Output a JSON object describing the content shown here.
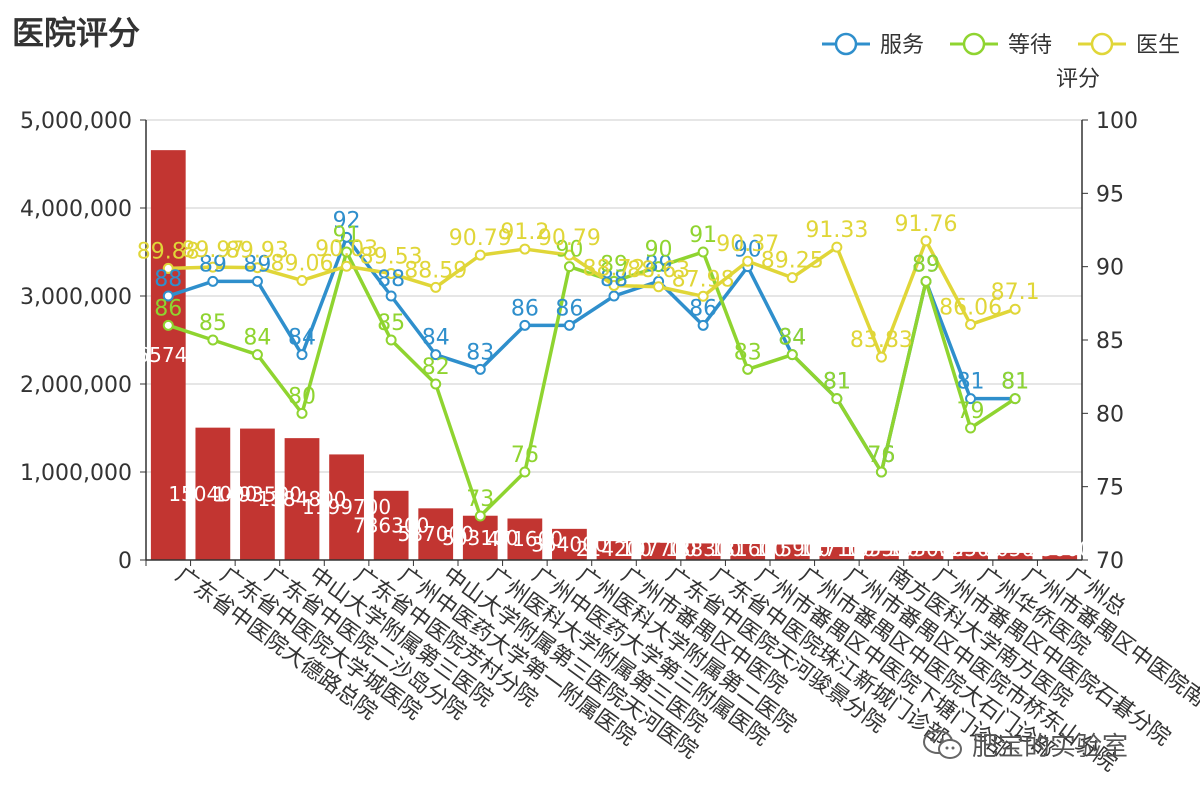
{
  "title": "医院评分",
  "watermark": "肥宝的实验室",
  "chart_data": {
    "type": "bar+line",
    "title": "医院评分",
    "y2label": "评分",
    "ylim": [
      0,
      5000000
    ],
    "y2lim": [
      70,
      100
    ],
    "y_ticks": [
      "0",
      "1,000,000",
      "2,000,000",
      "3,000,000",
      "4,000,000",
      "5,000,000"
    ],
    "y2_ticks": [
      "70",
      "75",
      "80",
      "85",
      "90",
      "95",
      "100"
    ],
    "categories": [
      "广东省中医院大德路总院",
      "广东省中医院大学城医院",
      "广东省中医院二沙岛分院",
      "中山大学附属第三医院",
      "广东省中医院芳村分院",
      "广州中医药大学第一附属医院",
      "中山大学附属第三医院天河医院",
      "广州医科大学附属第三医院",
      "广州中医药大学第三附属医院",
      "广州医科大学附属第二医院",
      "广州市番禺区中医院",
      "广东省中医院天河骏景分院",
      "广东省中医院珠江新城门诊部",
      "广州市番禺区中医院下塘门诊部",
      "广州市番禺区中医院大石门诊部",
      "广州市番禺区中医院市桥东山分院",
      "南方医科大学南方医院",
      "广州市番禺区中医院石碁分院",
      "广州华侨医院",
      "广州市番禺区中医院南村分院",
      "广州总"
    ],
    "bar_series": {
      "name": "",
      "color": "#c23531",
      "values": [
        4657400,
        1504000,
        1493500,
        1384800,
        1199700,
        786300,
        587000,
        503100,
        471600,
        354000,
        214200,
        197700,
        188300,
        181600,
        175900,
        147100,
        105500,
        103000,
        92500,
        80500,
        55000
      ]
    },
    "bar_labels": [
      "4657400",
      "1504000",
      "1493500",
      "1384800",
      "1199700",
      "786300",
      "587000",
      "503100",
      "471600",
      "354000",
      "214200",
      "197700",
      "188300",
      "181600",
      "175900",
      "147100",
      "105500",
      "103000",
      "92500",
      "80500",
      "55000"
    ],
    "series": [
      {
        "name": "服务",
        "color": "#2f8fcc",
        "values": [
          88,
          89,
          89,
          84,
          92,
          88,
          84,
          83,
          86,
          86,
          88,
          89,
          86,
          90,
          84,
          81,
          76,
          89,
          81,
          81,
          null
        ],
        "labels": [
          "88",
          "89",
          "89",
          "84",
          "92",
          "88",
          "84",
          "83",
          "86",
          "86",
          "88",
          "89",
          "86",
          "90",
          "84",
          "81",
          "76",
          "89",
          "81",
          "81",
          ""
        ]
      },
      {
        "name": "等待",
        "color": "#8fd430",
        "values": [
          86,
          85,
          84,
          80,
          91,
          85,
          82,
          73,
          76,
          90,
          89,
          90,
          91,
          83,
          84,
          81,
          76,
          89,
          79,
          81,
          null
        ],
        "labels": [
          "86",
          "85",
          "84",
          "80",
          "91",
          "85",
          "82",
          "73",
          "76",
          "90",
          "89",
          "90",
          "91",
          "83",
          "84",
          "81",
          "76",
          "89",
          "79",
          "81",
          ""
        ]
      },
      {
        "name": "医生",
        "color": "#e0d638",
        "values": [
          89.88,
          89.97,
          89.93,
          89.06,
          90.03,
          89.53,
          88.59,
          90.79,
          91.2,
          90.79,
          88.72,
          88.63,
          87.98,
          90.37,
          89.25,
          91.33,
          83.83,
          91.76,
          86.06,
          87.1,
          null
        ],
        "labels": [
          "89.88",
          "89.97",
          "89.93",
          "89.06",
          "90.03",
          "89.53",
          "88.59",
          "90.79",
          "91.2",
          "90.79",
          "88.72",
          "88.63",
          "87.98",
          "90.37",
          "89.25",
          "91.33",
          "83.83",
          "91.76",
          "86.06",
          "87.1",
          ""
        ]
      }
    ],
    "legend": {
      "position": "top-right"
    },
    "grid": true
  },
  "colors": {
    "axis": "#333333",
    "grid": "#cccccc"
  }
}
